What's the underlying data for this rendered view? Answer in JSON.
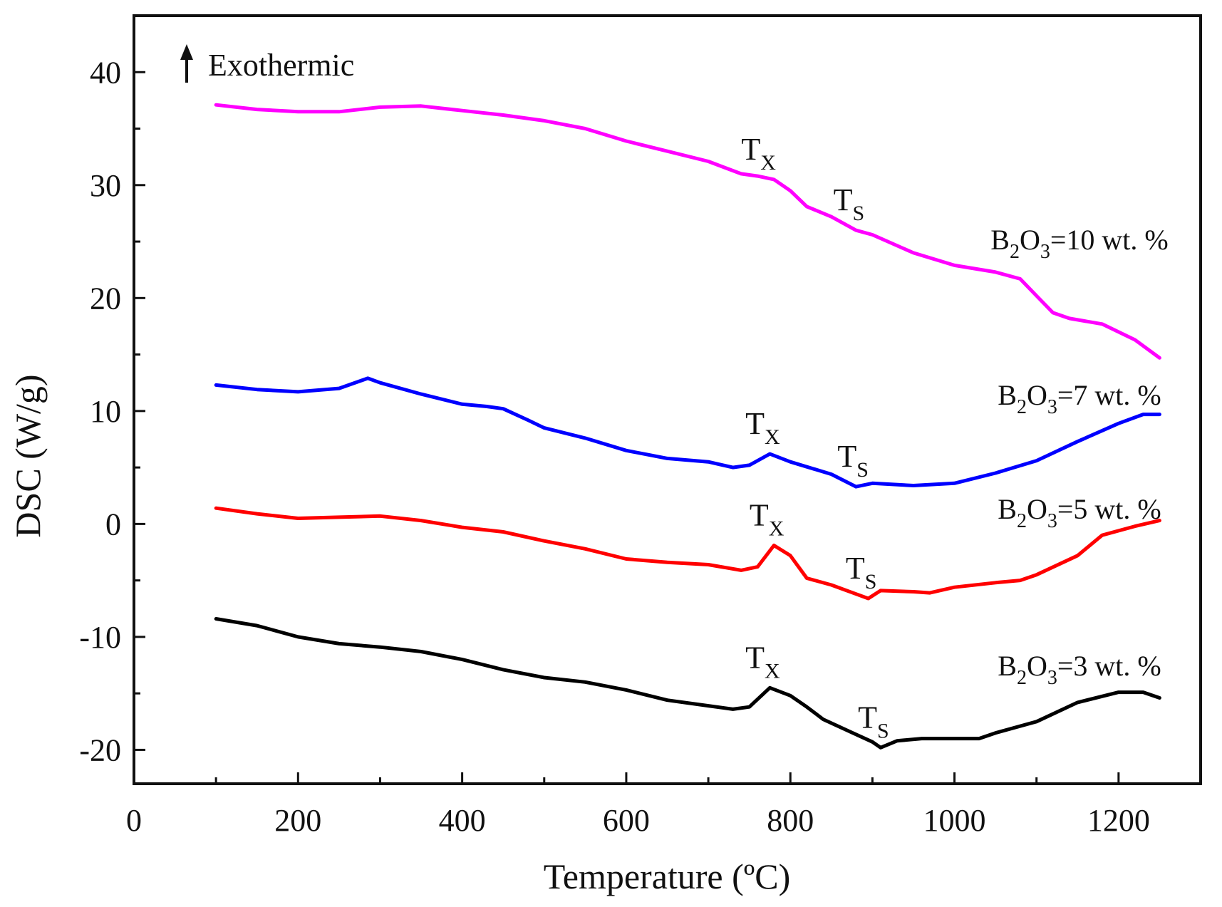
{
  "chart_data": {
    "type": "line",
    "xlabel": "Temperature (ºC)",
    "ylabel": "DSC (W/g)",
    "xlim": [
      0,
      1300
    ],
    "ylim": [
      -23,
      45
    ],
    "x_ticks": [
      0,
      200,
      400,
      600,
      800,
      1000,
      1200
    ],
    "y_ticks": [
      -20,
      -10,
      0,
      10,
      20,
      30,
      40
    ],
    "annotation": "Exothermic",
    "series": [
      {
        "name": "B2O3=10 wt. %",
        "label": {
          "sym1": "B",
          "sub1": "2",
          "sym2": "O",
          "sub2": "3",
          "rest": "=10 wt. %"
        },
        "color": "#ff00ff",
        "points": [
          [
            100,
            37.1
          ],
          [
            150,
            36.7
          ],
          [
            200,
            36.5
          ],
          [
            250,
            36.5
          ],
          [
            300,
            36.9
          ],
          [
            350,
            37.0
          ],
          [
            400,
            36.6
          ],
          [
            450,
            36.2
          ],
          [
            500,
            35.7
          ],
          [
            550,
            35.0
          ],
          [
            600,
            33.9
          ],
          [
            650,
            33.0
          ],
          [
            700,
            32.1
          ],
          [
            740,
            31.0
          ],
          [
            760,
            30.8
          ],
          [
            780,
            30.5
          ],
          [
            800,
            29.5
          ],
          [
            820,
            28.1
          ],
          [
            850,
            27.2
          ],
          [
            880,
            26.0
          ],
          [
            900,
            25.6
          ],
          [
            950,
            24.0
          ],
          [
            1000,
            22.9
          ],
          [
            1050,
            22.3
          ],
          [
            1080,
            21.7
          ],
          [
            1100,
            20.2
          ],
          [
            1120,
            18.7
          ],
          [
            1140,
            18.2
          ],
          [
            1180,
            17.7
          ],
          [
            1220,
            16.3
          ],
          [
            1250,
            14.7
          ]
        ],
        "markers": [
          {
            "name": "Tx",
            "main": "T",
            "sub": "X",
            "x": 770,
            "y": 30.5
          },
          {
            "name": "Ts",
            "main": "T",
            "sub": "S",
            "x": 880,
            "y": 26.0
          }
        ]
      },
      {
        "name": "B2O3=7 wt. %",
        "label": {
          "sym1": "B",
          "sub1": "2",
          "sym2": "O",
          "sub2": "3",
          "rest": "=7 wt. %"
        },
        "color": "#0000ff",
        "points": [
          [
            100,
            12.3
          ],
          [
            150,
            11.9
          ],
          [
            200,
            11.7
          ],
          [
            250,
            12.0
          ],
          [
            285,
            12.9
          ],
          [
            300,
            12.5
          ],
          [
            350,
            11.5
          ],
          [
            400,
            10.6
          ],
          [
            430,
            10.4
          ],
          [
            450,
            10.2
          ],
          [
            480,
            9.2
          ],
          [
            500,
            8.5
          ],
          [
            550,
            7.6
          ],
          [
            600,
            6.5
          ],
          [
            650,
            5.8
          ],
          [
            700,
            5.5
          ],
          [
            730,
            5.0
          ],
          [
            750,
            5.2
          ],
          [
            775,
            6.2
          ],
          [
            800,
            5.5
          ],
          [
            850,
            4.4
          ],
          [
            880,
            3.3
          ],
          [
            900,
            3.6
          ],
          [
            950,
            3.4
          ],
          [
            1000,
            3.6
          ],
          [
            1050,
            4.5
          ],
          [
            1100,
            5.6
          ],
          [
            1150,
            7.3
          ],
          [
            1200,
            8.9
          ],
          [
            1230,
            9.7
          ],
          [
            1250,
            9.7
          ]
        ],
        "markers": [
          {
            "name": "Tx",
            "main": "T",
            "sub": "X",
            "x": 775,
            "y": 6.2
          },
          {
            "name": "Ts",
            "main": "T",
            "sub": "S",
            "x": 885,
            "y": 3.3
          }
        ]
      },
      {
        "name": "B2O3=5 wt. %",
        "label": {
          "sym1": "B",
          "sub1": "2",
          "sym2": "O",
          "sub2": "3",
          "rest": "=5 wt. %"
        },
        "color": "#ff0000",
        "points": [
          [
            100,
            1.4
          ],
          [
            150,
            0.9
          ],
          [
            200,
            0.5
          ],
          [
            250,
            0.6
          ],
          [
            300,
            0.7
          ],
          [
            350,
            0.3
          ],
          [
            400,
            -0.3
          ],
          [
            450,
            -0.7
          ],
          [
            500,
            -1.5
          ],
          [
            550,
            -2.2
          ],
          [
            600,
            -3.1
          ],
          [
            650,
            -3.4
          ],
          [
            700,
            -3.6
          ],
          [
            740,
            -4.1
          ],
          [
            760,
            -3.8
          ],
          [
            780,
            -1.9
          ],
          [
            800,
            -2.8
          ],
          [
            820,
            -4.8
          ],
          [
            850,
            -5.4
          ],
          [
            880,
            -6.2
          ],
          [
            895,
            -6.6
          ],
          [
            910,
            -5.9
          ],
          [
            950,
            -6.0
          ],
          [
            970,
            -6.1
          ],
          [
            1000,
            -5.6
          ],
          [
            1050,
            -5.2
          ],
          [
            1080,
            -5.0
          ],
          [
            1100,
            -4.5
          ],
          [
            1150,
            -2.8
          ],
          [
            1180,
            -1.0
          ],
          [
            1220,
            -0.2
          ],
          [
            1250,
            0.3
          ]
        ],
        "markers": [
          {
            "name": "Tx",
            "main": "T",
            "sub": "X",
            "x": 780,
            "y": -1.9
          },
          {
            "name": "Ts",
            "main": "T",
            "sub": "S",
            "x": 895,
            "y": -6.6
          }
        ]
      },
      {
        "name": "B2O3=3 wt. %",
        "label": {
          "sym1": "B",
          "sub1": "2",
          "sym2": "O",
          "sub2": "3",
          "rest": "=3 wt. %"
        },
        "color": "#000000",
        "points": [
          [
            100,
            -8.4
          ],
          [
            150,
            -9.0
          ],
          [
            200,
            -10.0
          ],
          [
            250,
            -10.6
          ],
          [
            300,
            -10.9
          ],
          [
            350,
            -11.3
          ],
          [
            400,
            -12.0
          ],
          [
            450,
            -12.9
          ],
          [
            500,
            -13.6
          ],
          [
            550,
            -14.0
          ],
          [
            600,
            -14.7
          ],
          [
            650,
            -15.6
          ],
          [
            700,
            -16.1
          ],
          [
            730,
            -16.4
          ],
          [
            750,
            -16.2
          ],
          [
            775,
            -14.5
          ],
          [
            800,
            -15.2
          ],
          [
            820,
            -16.2
          ],
          [
            840,
            -17.3
          ],
          [
            870,
            -18.3
          ],
          [
            900,
            -19.3
          ],
          [
            910,
            -19.8
          ],
          [
            930,
            -19.2
          ],
          [
            960,
            -19.0
          ],
          [
            1000,
            -19.0
          ],
          [
            1030,
            -19.0
          ],
          [
            1050,
            -18.5
          ],
          [
            1100,
            -17.5
          ],
          [
            1150,
            -15.8
          ],
          [
            1200,
            -14.9
          ],
          [
            1230,
            -14.9
          ],
          [
            1250,
            -15.4
          ]
        ],
        "markers": [
          {
            "name": "Tx",
            "main": "T",
            "sub": "X",
            "x": 775,
            "y": -14.5
          },
          {
            "name": "Ts",
            "main": "T",
            "sub": "S",
            "x": 910,
            "y": -19.8
          }
        ]
      }
    ]
  }
}
